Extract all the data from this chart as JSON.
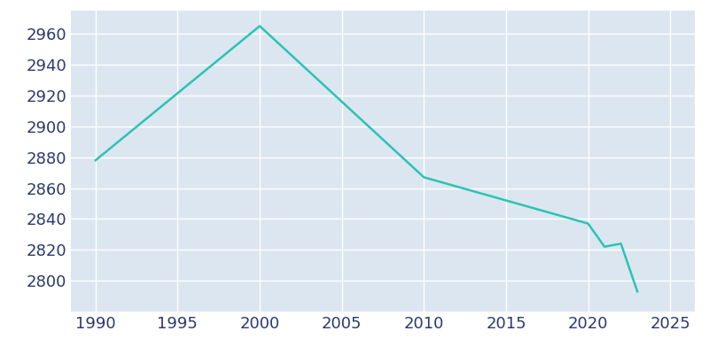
{
  "years": [
    1990,
    2000,
    2010,
    2020,
    2021,
    2022,
    2023
  ],
  "population": [
    2878,
    2965,
    2867,
    2837,
    2822,
    2824,
    2793
  ],
  "line_color": "#2ac4b3",
  "plot_bg_color": "#dce6f0",
  "fig_bg_color": "#ffffff",
  "grid_color": "#ffffff",
  "tick_color": "#2b3a6b",
  "xlim": [
    1988.5,
    2026.5
  ],
  "ylim": [
    2780,
    2975
  ],
  "yticks": [
    2800,
    2820,
    2840,
    2860,
    2880,
    2900,
    2920,
    2940,
    2960
  ],
  "xticks": [
    1990,
    1995,
    2000,
    2005,
    2010,
    2015,
    2020,
    2025
  ],
  "line_width": 1.8,
  "tick_label_fontsize": 13
}
